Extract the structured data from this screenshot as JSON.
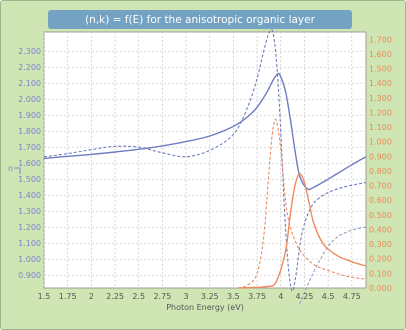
{
  "chart_data": {
    "type": "line",
    "title": "(n,k) = f(E) for the anisotropic organic layer",
    "xlabel": "Photon Energy (eV)",
    "ylabel_left": "n",
    "xlim": [
      1.5,
      4.9
    ],
    "ylim_left": [
      0.82,
      2.42
    ],
    "ylim_right": [
      0.0,
      1.75
    ],
    "x_ticks": [
      1.5,
      1.75,
      2,
      2.25,
      2.5,
      2.75,
      3,
      3.25,
      3.5,
      3.75,
      4,
      4.25,
      4.5,
      4.75
    ],
    "x_tick_labels": [
      "1.5",
      "1.75",
      "2",
      "2.25",
      "2.5",
      "2.75",
      "3",
      "3.25",
      "3.5",
      "3.75",
      "4",
      "4.25",
      "4.5",
      "4.75"
    ],
    "left_ticks": [
      0.9,
      1.0,
      1.1,
      1.2,
      1.3,
      1.4,
      1.5,
      1.6,
      1.7,
      1.8,
      1.9,
      2.0,
      2.1,
      2.2,
      2.3
    ],
    "left_tick_labels": [
      "0.900",
      "1.000",
      "1.100",
      "1.200",
      "1.300",
      "1.400",
      "1.500",
      "1.600",
      "1.700",
      "1.800",
      "1.900",
      "2.000",
      "2.100",
      "2.200",
      "2.300"
    ],
    "right_ticks": [
      0.0,
      0.1,
      0.2,
      0.3,
      0.4,
      0.5,
      0.6,
      0.7,
      0.8,
      0.9,
      1.0,
      1.1,
      1.2,
      1.3,
      1.4,
      1.5,
      1.6,
      1.7
    ],
    "right_tick_labels": [
      "0.000",
      "0.100",
      "0.200",
      "0.300",
      "0.400",
      "0.500",
      "0.600",
      "0.700",
      "0.800",
      "0.900",
      "1.000",
      "1.100",
      "1.200",
      "1.300",
      "1.400",
      "1.500",
      "1.600",
      "1.700"
    ],
    "grid": true,
    "series": [
      {
        "axis": "left",
        "color": "#6f7cc0",
        "style": "solid",
        "x": [
          1.5,
          1.75,
          2.0,
          2.25,
          2.5,
          2.75,
          3.0,
          3.25,
          3.5,
          3.65,
          3.75,
          3.85,
          3.92,
          3.97,
          4.0,
          4.05,
          4.1,
          4.15,
          4.2,
          4.28,
          4.35,
          4.5,
          4.75,
          4.9
        ],
        "y": [
          1.63,
          1.643,
          1.655,
          1.67,
          1.687,
          1.708,
          1.735,
          1.77,
          1.83,
          1.89,
          1.95,
          2.04,
          2.12,
          2.16,
          2.14,
          2.05,
          1.88,
          1.68,
          1.52,
          1.44,
          1.45,
          1.5,
          1.59,
          1.64
        ]
      },
      {
        "axis": "left",
        "color": "#6f7cc0",
        "style": "dashed",
        "x": [
          1.5,
          1.75,
          2.0,
          2.25,
          2.5,
          2.75,
          3.0,
          3.25,
          3.5,
          3.65,
          3.75,
          3.82,
          3.88,
          3.92,
          3.96,
          4.0,
          4.04,
          4.08,
          4.12,
          4.16,
          4.22,
          4.3,
          4.4,
          4.6,
          4.9
        ],
        "y": [
          1.64,
          1.66,
          1.685,
          1.705,
          1.7,
          1.665,
          1.64,
          1.68,
          1.78,
          1.95,
          2.13,
          2.3,
          2.42,
          2.41,
          2.2,
          1.8,
          1.3,
          0.95,
          0.8,
          0.9,
          1.15,
          1.3,
          1.38,
          1.44,
          1.48
        ]
      },
      {
        "axis": "left",
        "color": "#8ea0c0",
        "style": "dashed",
        "x": [
          4.2,
          4.3,
          4.4,
          4.5,
          4.6,
          4.7,
          4.8,
          4.9
        ],
        "y": [
          0.72,
          0.86,
          0.98,
          1.08,
          1.14,
          1.17,
          1.19,
          1.2
        ]
      },
      {
        "axis": "right",
        "color": "#ee8a5e",
        "style": "solid",
        "x": [
          3.55,
          3.75,
          3.85,
          3.95,
          4.05,
          4.1,
          4.15,
          4.2,
          4.25,
          4.3,
          4.35,
          4.45,
          4.6,
          4.75,
          4.9
        ],
        "y": [
          0.0,
          0.005,
          0.01,
          0.04,
          0.25,
          0.5,
          0.7,
          0.78,
          0.72,
          0.58,
          0.44,
          0.3,
          0.22,
          0.18,
          0.15
        ]
      },
      {
        "axis": "right",
        "color": "#ee8a5e",
        "style": "dashed",
        "x": [
          3.55,
          3.65,
          3.75,
          3.82,
          3.87,
          3.91,
          3.95,
          4.0,
          4.05,
          4.1,
          4.2,
          4.35,
          4.5,
          4.7,
          4.9
        ],
        "y": [
          0.0,
          0.02,
          0.1,
          0.35,
          0.75,
          1.05,
          1.15,
          0.95,
          0.6,
          0.42,
          0.26,
          0.16,
          0.12,
          0.08,
          0.06
        ]
      }
    ]
  },
  "colors": {
    "background": "#cfe6b4",
    "title_bar": "#73a2c2",
    "plot_area": "#ffffff",
    "grid": "#c8c8c8",
    "left_axis_text": "#7a86c8",
    "right_axis_text": "#e98a5a",
    "x_axis_text": "#555555"
  }
}
